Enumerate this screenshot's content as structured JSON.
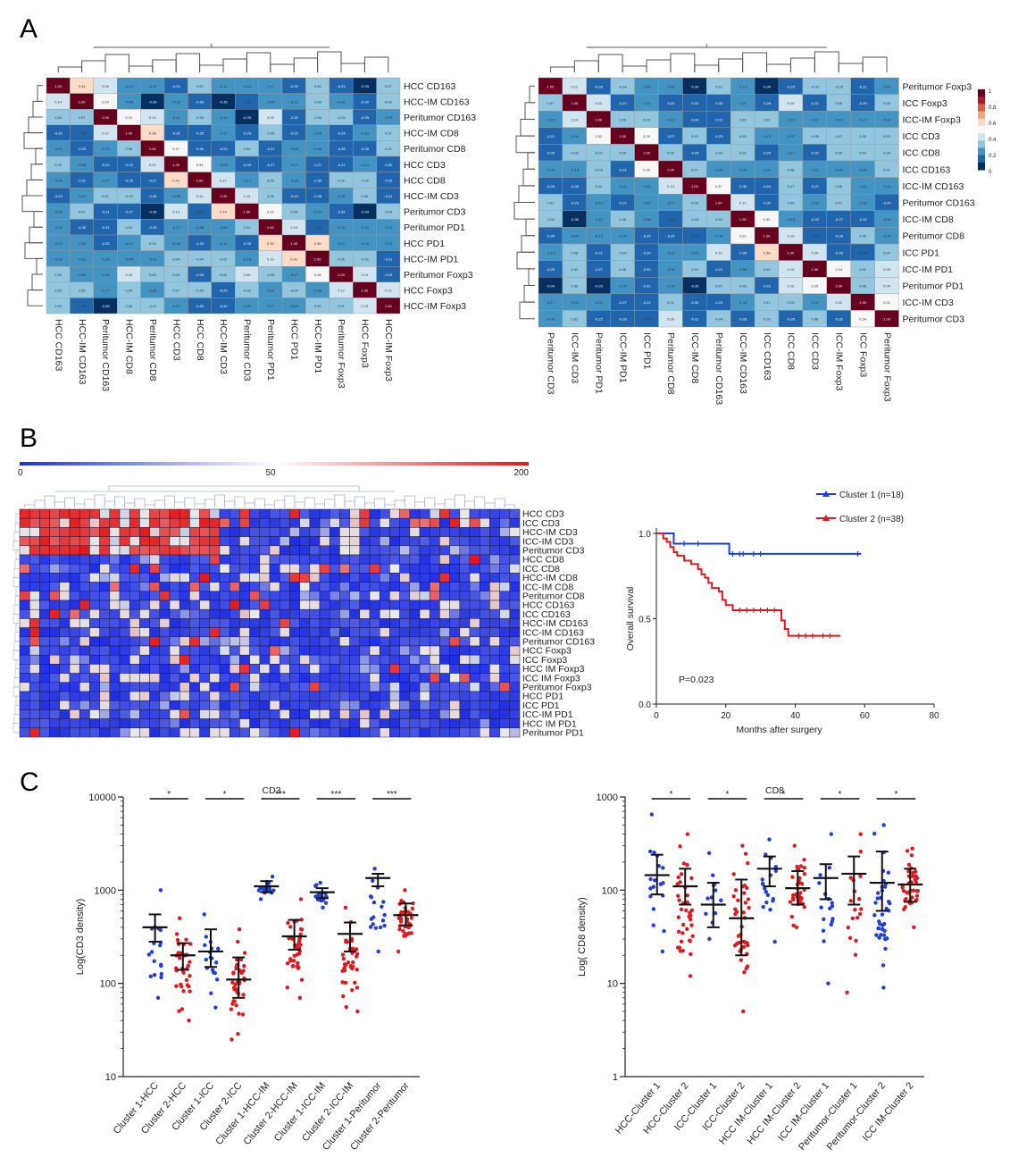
{
  "panel_labels": [
    "A",
    "B",
    "C"
  ],
  "heatmap_color_scale": {
    "ticks": [
      "1",
      "0.8",
      "0.6",
      "0.4",
      "0.2",
      "0"
    ],
    "colors": [
      "#053061",
      "#2166ac",
      "#4393c3",
      "#92c5de",
      "#d1e5f0",
      "#f7f7f7",
      "#fddbc7",
      "#f4a582",
      "#d6604d",
      "#b2182b",
      "#67001f"
    ]
  },
  "chart_data": [
    {
      "id": "A-left",
      "type": "heatmap",
      "title": "",
      "rows": [
        "HCC CD163",
        "HCC-IM CD163",
        "Peritumor CD163",
        "HCC-IM CD8",
        "Peritumor CD8",
        "HCC CD3",
        "HCC CD8",
        "HCC-IM CD3",
        "Peritumor CD3",
        "Peritumor PD1",
        "HCC PD1",
        "HCC-IM PD1",
        "Peritumor Foxp3",
        "HCC Foxp3",
        "HCC-IM Foxp3"
      ],
      "columns": [
        "HCC CD163",
        "HCC-IM CD163",
        "Peritumor CD163",
        "HCC-IM CD8",
        "Peritumor CD8",
        "HCC CD3",
        "HCC CD8",
        "HCC-IM CD3",
        "Peritumor CD3",
        "Peritumor PD1",
        "HCC PD1",
        "HCC-IM PD1",
        "Peritumor Foxp3",
        "HCC Foxp3",
        "HCC-IM Foxp3"
      ],
      "value_range": [
        -0.4,
        1
      ]
    },
    {
      "id": "A-right",
      "type": "heatmap",
      "title": "",
      "rows": [
        "Peritumor Foxp3",
        "ICC Foxp3",
        "ICC-IM Foxp3",
        "ICC CD3",
        "ICC CD8",
        "ICC CD163",
        "ICC-IM CD163",
        "Peritumor CD163",
        "ICC-IM CD8",
        "Peritumor CD8",
        "ICC PD1",
        "ICC-IM PD1",
        "Peritumor PD1",
        "ICC-IM CD3",
        "Peritumor CD3"
      ],
      "columns": [
        "Peritumor CD3",
        "ICC-IM CD3",
        "Peritumor PD1",
        "ICC-IM PD1",
        "ICC PD1",
        "Peritumor CD8",
        "ICC-IM CD8",
        "Peritumor CD163",
        "ICC-IM CD163",
        "ICC CD163",
        "ICC CD8",
        "ICC CD3",
        "ICC-IM Foxp3",
        "ICC Foxp3",
        "Peritumor Foxp3"
      ],
      "value_range": [
        -0.4,
        1
      ]
    },
    {
      "id": "B-left",
      "type": "heatmap",
      "title": "",
      "scale_ticks": [
        "0",
        "50",
        "200"
      ],
      "value_range": [
        0,
        200
      ],
      "n_columns": 50,
      "rows": [
        "HCC CD3",
        "ICC CD3",
        "HCC-IM CD3",
        "ICC-IM CD3",
        "Peritumor CD3",
        "HCC CD8",
        "ICC CD8",
        "HCC-IM CD8",
        "ICC-IM CD8",
        "Peritumor CD8",
        "HCC CD163",
        "ICC CD163",
        "HCC-IM CD163",
        "ICC-IM CD163",
        "Peritumor CD163",
        "HCC Foxp3",
        "ICC Foxp3",
        "HCC IM Foxp3",
        "ICC IM Foxp3",
        "Peritumor Foxp3",
        "HCC PD1",
        "ICC PD1",
        "ICC-IM PD1",
        "HCC IM PD1",
        "Peritumor PD1"
      ]
    },
    {
      "id": "B-right",
      "type": "line",
      "title": "",
      "xlabel": "Months after surgery",
      "ylabel": "Overall survival",
      "xlim": [
        0,
        80
      ],
      "ylim": [
        0,
        1
      ],
      "xticks": [
        0,
        20,
        40,
        60,
        80
      ],
      "yticks": [
        0.0,
        0.5,
        1.0
      ],
      "ytick_labels": [
        "0.0",
        "0.5",
        "1.0"
      ],
      "annotation": "P=0.023",
      "legend": "top-right",
      "series": [
        {
          "name": "Cluster 1 (n=18)",
          "color": "#1f3fd6",
          "x": [
            0,
            5,
            5,
            20,
            20,
            21,
            21,
            59
          ],
          "y": [
            1.0,
            1.0,
            0.94,
            0.94,
            0.94,
            0.94,
            0.88,
            0.88
          ],
          "censored_x": [
            8,
            12,
            22,
            24,
            25,
            28,
            30,
            58
          ]
        },
        {
          "name": "Cluster 2 (n=38)",
          "color": "#e0191e",
          "x": [
            0,
            2,
            3,
            4,
            5,
            6,
            8,
            10,
            12,
            13,
            14,
            15,
            16,
            18,
            19,
            20,
            22,
            35,
            36,
            37,
            38,
            53
          ],
          "y": [
            1.0,
            0.97,
            0.95,
            0.92,
            0.89,
            0.87,
            0.84,
            0.82,
            0.79,
            0.76,
            0.74,
            0.71,
            0.68,
            0.66,
            0.61,
            0.58,
            0.55,
            0.55,
            0.49,
            0.44,
            0.4,
            0.4
          ],
          "censored_x": [
            24,
            26,
            28,
            30,
            32,
            34,
            41,
            43,
            45,
            48,
            50
          ]
        }
      ]
    },
    {
      "id": "C-left",
      "type": "scatter",
      "title": "CD3",
      "xlabel": "",
      "ylabel": "Log(CD3 density)",
      "yscale": "log",
      "ylim": [
        10,
        10000
      ],
      "ytick_labels": [
        "10",
        "100",
        "1000",
        "10000"
      ],
      "categories": [
        "Cluster 1-HCC",
        "Cluster 2-HCC",
        "Cluster 1-ICC",
        "Cluster 2-ICC",
        "Cluster 1-HCC-IM",
        "Cluster 2-HCC-IM",
        "Cluster 1-ICC-IM",
        "Cluster 2-ICC-IM",
        "Cluster 1-Peritumor",
        "Cluster 2-Peritumor"
      ],
      "medians": [
        400,
        200,
        220,
        110,
        1100,
        320,
        950,
        340,
        1350,
        540
      ],
      "lower": [
        280,
        140,
        150,
        70,
        950,
        230,
        820,
        220,
        1100,
        420
      ],
      "upper": [
        550,
        270,
        380,
        190,
        1250,
        480,
        1050,
        450,
        1500,
        720
      ],
      "ranges": [
        [
          70,
          1000
        ],
        [
          40,
          500
        ],
        [
          55,
          550
        ],
        [
          25,
          380
        ],
        [
          800,
          1400
        ],
        [
          70,
          800
        ],
        [
          650,
          1200
        ],
        [
          50,
          650
        ],
        [
          220,
          1700
        ],
        [
          220,
          1000
        ]
      ],
      "counts": [
        18,
        38,
        18,
        38,
        18,
        38,
        18,
        38,
        18,
        38
      ],
      "colors": [
        "#1f3fd6",
        "#e0191e",
        "#1f3fd6",
        "#e0191e",
        "#1f3fd6",
        "#e0191e",
        "#1f3fd6",
        "#e0191e",
        "#1f3fd6",
        "#e0191e"
      ],
      "significance": [
        "*",
        "*",
        "***",
        "***",
        "***"
      ]
    },
    {
      "id": "C-right",
      "type": "scatter",
      "title": "CD8",
      "xlabel": "",
      "ylabel": "Log( CD8 density)",
      "yscale": "log",
      "ylim": [
        1,
        1000
      ],
      "ytick_labels": [
        "1",
        "10",
        "100",
        "1000"
      ],
      "categories": [
        "HCC-Cluster 1",
        "HCC-Cluster 2",
        "ICC-Cluster 1",
        "ICC-Cluster 2",
        "HCC IM-Cluster 1",
        "HCC IM-Cluster 2",
        "ICC IM-Cluster 1",
        "Peritumor-Cluster 1",
        "Peritumor-Cluster 2",
        "ICC IM-Cluster 2"
      ],
      "medians": [
        145,
        110,
        70,
        50,
        170,
        105,
        135,
        150,
        120,
        115
      ],
      "lower": [
        90,
        70,
        40,
        20,
        110,
        70,
        80,
        70,
        60,
        75
      ],
      "upper": [
        240,
        170,
        120,
        130,
        230,
        160,
        190,
        230,
        260,
        170
      ],
      "ranges": [
        [
          22,
          650
        ],
        [
          12,
          400
        ],
        [
          30,
          250
        ],
        [
          5,
          300
        ],
        [
          28,
          350
        ],
        [
          40,
          300
        ],
        [
          10,
          400
        ],
        [
          8,
          400
        ],
        [
          9,
          500
        ],
        [
          40,
          280
        ]
      ],
      "counts": [
        18,
        38,
        12,
        38,
        18,
        38,
        18,
        18,
        38,
        38
      ],
      "colors": [
        "#1f3fd6",
        "#e0191e",
        "#1f3fd6",
        "#e0191e",
        "#1f3fd6",
        "#e0191e",
        "#1f3fd6",
        "#e0191e",
        "#1f3fd6",
        "#e0191e"
      ],
      "significance": [
        "*",
        "*",
        "*",
        "*",
        "*"
      ]
    }
  ]
}
